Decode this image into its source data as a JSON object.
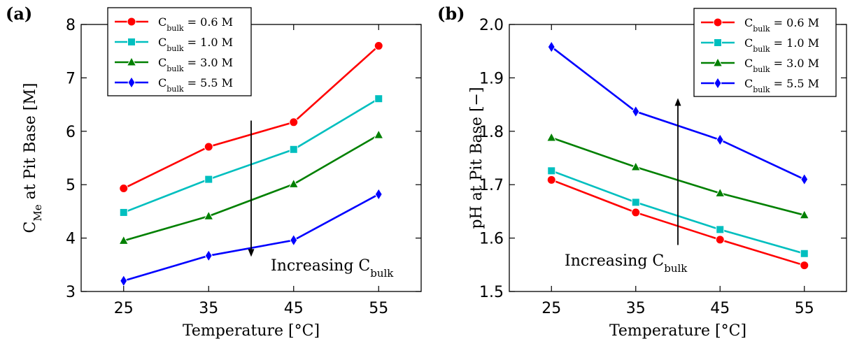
{
  "chart_data": [
    {
      "type": "line",
      "panel_label": "(a)",
      "xlabel": "Temperature [°C]",
      "ylabel": "C_Me at Pit Base [M]",
      "x": [
        25,
        35,
        45,
        55
      ],
      "xlim": [
        20,
        60
      ],
      "ylim": [
        3,
        8
      ],
      "xticks": [
        "25",
        "35",
        "45",
        "55"
      ],
      "yticks": [
        "3",
        "4",
        "5",
        "6",
        "7",
        "8"
      ],
      "series": [
        {
          "name": "C_bulk = 0.6 M",
          "color": "#ff0000",
          "marker": "circle",
          "values": [
            4.93,
            5.71,
            6.17,
            7.6
          ]
        },
        {
          "name": "C_bulk = 1.0 M",
          "color": "#00bfbf",
          "marker": "square",
          "values": [
            4.48,
            5.1,
            5.66,
            6.61
          ]
        },
        {
          "name": "C_bulk = 3.0 M",
          "color": "#008000",
          "marker": "triangle",
          "values": [
            3.95,
            4.41,
            5.01,
            5.93
          ]
        },
        {
          "name": "C_bulk = 5.5 M",
          "color": "#0000ff",
          "marker": "diamond",
          "values": [
            3.2,
            3.67,
            3.96,
            4.82
          ]
        }
      ],
      "annotation": {
        "text": "Increasing C_bulk",
        "arrow": "down",
        "arrow_x": 40,
        "arrow_from": 6.2,
        "arrow_to": 3.65
      },
      "legend": "top-left",
      "grid": false
    },
    {
      "type": "line",
      "panel_label": "(b)",
      "xlabel": "Temperature [°C]",
      "ylabel": "pH at Pit Base [−]",
      "x": [
        25,
        35,
        45,
        55
      ],
      "xlim": [
        20,
        60
      ],
      "ylim": [
        1.5,
        2.0
      ],
      "xticks": [
        "25",
        "35",
        "45",
        "55"
      ],
      "yticks": [
        "1.5",
        "1.6",
        "1.7",
        "1.8",
        "1.9",
        "2.0"
      ],
      "series": [
        {
          "name": "C_bulk = 0.6 M",
          "color": "#ff0000",
          "marker": "circle",
          "values": [
            1.709,
            1.648,
            1.597,
            1.549
          ]
        },
        {
          "name": "C_bulk = 1.0 M",
          "color": "#00bfbf",
          "marker": "square",
          "values": [
            1.726,
            1.667,
            1.616,
            1.571
          ]
        },
        {
          "name": "C_bulk = 3.0 M",
          "color": "#008000",
          "marker": "triangle",
          "values": [
            1.788,
            1.733,
            1.684,
            1.643
          ]
        },
        {
          "name": "C_bulk = 5.5 M",
          "color": "#0000ff",
          "marker": "diamond",
          "values": [
            1.958,
            1.837,
            1.784,
            1.71
          ]
        }
      ],
      "annotation": {
        "text": "Increasing C_bulk",
        "arrow": "up",
        "arrow_x": 40,
        "arrow_from": 1.587,
        "arrow_to": 1.862
      },
      "legend": "top-right",
      "grid": false
    }
  ]
}
